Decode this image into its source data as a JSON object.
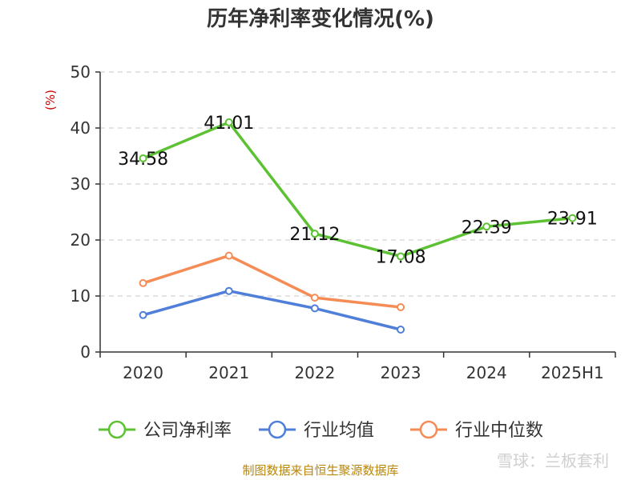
{
  "chart_data": {
    "type": "line",
    "title": "历年净利率变化情况(%)",
    "ylabel": "(%)",
    "xlabel": "",
    "categories": [
      "2020",
      "2021",
      "2022",
      "2023",
      "2024",
      "2025H1"
    ],
    "ylim": [
      0,
      50
    ],
    "yticks": [
      0,
      10,
      20,
      30,
      40,
      50
    ],
    "grid": true,
    "legend_position": "bottom",
    "series": [
      {
        "name": "公司净利率",
        "color": "#5cc233",
        "values": [
          34.58,
          41.01,
          21.12,
          17.08,
          22.39,
          23.91
        ],
        "labels": [
          "34.58",
          "41.01",
          "21.12",
          "17.08",
          "22.39",
          "23.91"
        ]
      },
      {
        "name": "行业均值",
        "color": "#4f7fd8",
        "values": [
          6.6,
          10.9,
          7.8,
          4.0,
          null,
          null
        ]
      },
      {
        "name": "行业中位数",
        "color": "#f58c55",
        "values": [
          12.3,
          17.2,
          9.7,
          8.0,
          null,
          null
        ]
      }
    ]
  },
  "footer": {
    "source": "制图数据来自恒生聚源数据库"
  },
  "watermark": {
    "text": "雪球：兰板套利"
  }
}
